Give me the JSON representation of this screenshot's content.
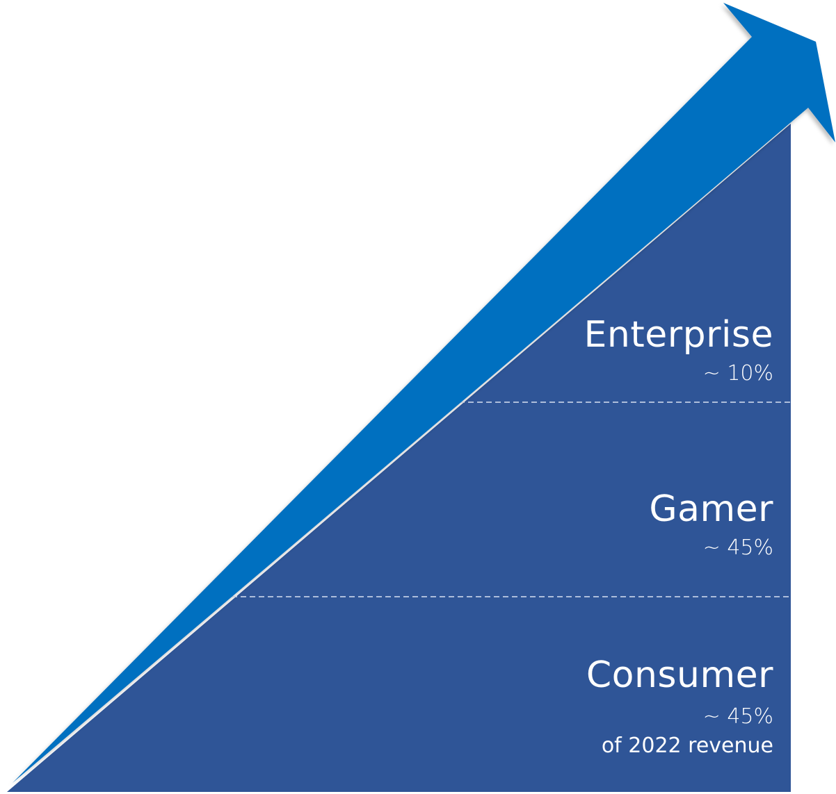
{
  "colors": {
    "triangle_fill": "#2f5597",
    "arrow_fill": "#0070c0",
    "divider": "#d9e1f2",
    "text": "#ffffff"
  },
  "segments": [
    {
      "name": "Enterprise",
      "share": "~ 10%"
    },
    {
      "name": "Gamer",
      "share": "~ 45%"
    },
    {
      "name": "Consumer",
      "share": "~ 45%",
      "note": "of 2022 revenue"
    }
  ],
  "icons": [
    "growth-arrow"
  ]
}
